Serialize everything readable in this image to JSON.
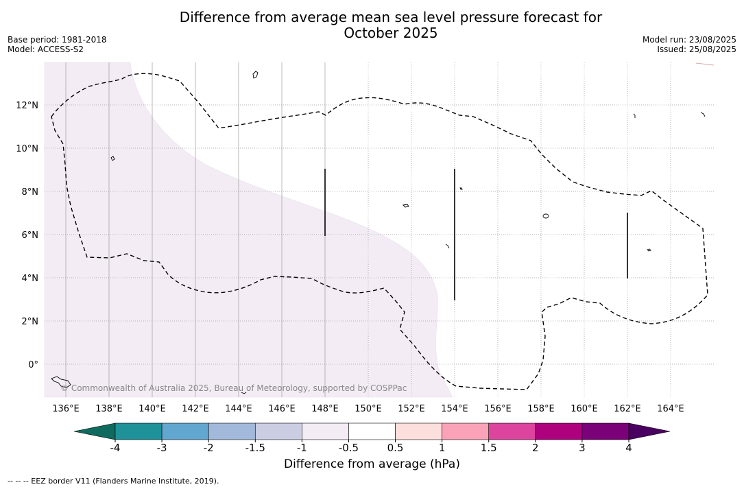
{
  "title": {
    "line1": "Difference from average mean sea level pressure forecast for",
    "line2": "October 2025"
  },
  "meta_left": {
    "base_period": "Base period: 1981-2018",
    "model": "Model: ACCESS-S2"
  },
  "meta_right": {
    "model_run": "Model run: 23/08/2025",
    "issued": "Issued: 25/08/2025"
  },
  "map": {
    "lon_ticks": [
      "136°E",
      "138°E",
      "140°E",
      "142°E",
      "144°E",
      "146°E",
      "148°E",
      "150°E",
      "152°E",
      "154°E",
      "156°E",
      "158°E",
      "160°E",
      "162°E",
      "164°E"
    ],
    "lat_ticks": [
      "12°N",
      "10°N",
      "8°N",
      "6°N",
      "4°N",
      "2°N",
      "0°"
    ],
    "copyright": "© Commonwealth of Australia 2025, Bureau of Meteorology, supported by COSPPac",
    "anomaly_fill_color": "#f3ecf5",
    "eez_style": "dashed"
  },
  "colorbar": {
    "ticks": [
      "-4",
      "-3",
      "-2",
      "-1.5",
      "-1",
      "-0.5",
      "0.5",
      "1",
      "1.5",
      "2",
      "3",
      "4"
    ],
    "colors": [
      "#0f6b5f",
      "#1f9199",
      "#62a7cf",
      "#a2b9db",
      "#cbcee3",
      "#f3ecf5",
      "#ffffff",
      "#fde0dd",
      "#f9a2b8",
      "#dd449e",
      "#ae017e",
      "#7a0177",
      "#4a0060"
    ],
    "label": "Difference from average (hPa)"
  },
  "footnote": "--  --  -- EEZ border V11 (Flanders Marine Institute, 2019)."
}
